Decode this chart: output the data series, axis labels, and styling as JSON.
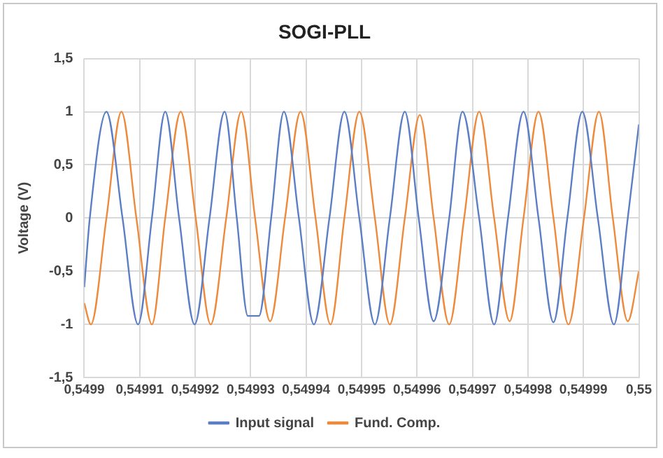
{
  "chart_data": {
    "type": "line",
    "title": "SOGI-PLL",
    "ylabel": "Voltage (V)",
    "xlim": [
      0.5499,
      0.55
    ],
    "xticks": [
      {
        "value": 0.5499,
        "label": "0,5499"
      },
      {
        "value": 0.54991,
        "label": "0,54991"
      },
      {
        "value": 0.54992,
        "label": "0,54992"
      },
      {
        "value": 0.54993,
        "label": "0,54993"
      },
      {
        "value": 0.54994,
        "label": "0,54994"
      },
      {
        "value": 0.54995,
        "label": "0,54995"
      },
      {
        "value": 0.54996,
        "label": "0,54996"
      },
      {
        "value": 0.54997,
        "label": "0,54997"
      },
      {
        "value": 0.54998,
        "label": "0,54998"
      },
      {
        "value": 0.54999,
        "label": "0,54999"
      },
      {
        "value": 0.55,
        "label": "0,55"
      }
    ],
    "ylim": [
      -1.5,
      1.5
    ],
    "yticks": [
      {
        "value": -1.5,
        "label": "-1,5"
      },
      -1,
      {
        "value": -0.5,
        "label": "-0,5"
      },
      0,
      {
        "value": 0.5,
        "label": "0,5"
      },
      1,
      {
        "value": 1.5,
        "label": "1,5"
      }
    ],
    "grid": true,
    "legend": "bottom",
    "marker": "none",
    "line_style": "solid",
    "series": [
      {
        "name": "Input signal",
        "color": "#5b7ec4",
        "x": [
          0.5499,
          0.549901,
          0.549904,
          0.5499069,
          0.5499097,
          0.5499122,
          0.5499146,
          0.5499171,
          0.5499199,
          0.5499226,
          0.5499253,
          0.5499275,
          0.5499295,
          0.5499315,
          0.5499337,
          0.549936,
          0.5499387,
          0.5499414,
          0.5499442,
          0.5499469,
          0.5499496,
          0.5499524,
          0.5499551,
          0.5499578,
          0.5499603,
          0.549963,
          0.5499658,
          0.5499682,
          0.5499712,
          0.5499739,
          0.5499764,
          0.5499792,
          0.5499819,
          0.5499846,
          0.5499871,
          0.5499898,
          0.5499926,
          0.5499955,
          0.549998,
          0.55
        ],
        "values": [
          -0.65,
          0,
          1,
          0,
          -1,
          0,
          1,
          0,
          -1,
          0,
          1,
          0,
          -0.92,
          -0.92,
          0,
          1,
          0,
          -1,
          0,
          1,
          0,
          -1,
          0,
          1,
          0,
          -0.97,
          0,
          1,
          0,
          -1,
          0,
          1,
          0,
          -0.98,
          0,
          1,
          0,
          -1,
          0,
          0.88
        ]
      },
      {
        "name": "Fund. Comp.",
        "color": "#ed8a3c",
        "x": [
          0.5499,
          0.5499012,
          0.549904,
          0.5499067,
          0.5499094,
          0.5499122,
          0.5499146,
          0.5499174,
          0.5499201,
          0.5499228,
          0.5499256,
          0.5499283,
          0.5499308,
          0.5499335,
          0.5499362,
          0.549939,
          0.5499417,
          0.5499444,
          0.5499469,
          0.5499496,
          0.5499524,
          0.5499551,
          0.5499578,
          0.5499605,
          0.549963,
          0.5499658,
          0.5499685,
          0.5499712,
          0.5499739,
          0.5499767,
          0.5499792,
          0.5499819,
          0.5499846,
          0.5499873,
          0.5499901,
          0.5499928,
          0.5499953,
          0.549998,
          0.55
        ],
        "values": [
          -0.8,
          -1,
          0,
          1,
          0,
          -1,
          0,
          1,
          0,
          -1,
          0,
          1,
          0,
          -0.97,
          0,
          1,
          0,
          -1,
          0,
          1,
          0,
          -1,
          0,
          0.97,
          0,
          -1,
          0,
          1,
          0,
          -0.97,
          0,
          1,
          0,
          -1,
          0,
          1,
          0,
          -0.97,
          -0.5
        ]
      }
    ]
  }
}
